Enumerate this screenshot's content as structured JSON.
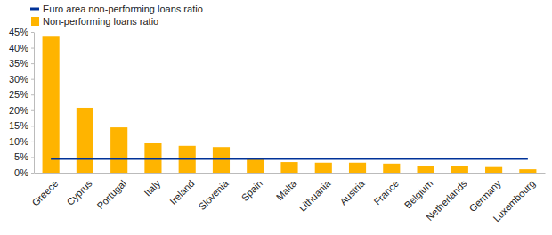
{
  "chart_data": {
    "type": "bar",
    "categories": [
      "Greece",
      "Cyprus",
      "Portugal",
      "Italy",
      "Ireland",
      "Slovenia",
      "Spain",
      "Malta",
      "Lithuania",
      "Austria",
      "France",
      "Belgium",
      "Netherlands",
      "Germany",
      "Luxembourg"
    ],
    "series": [
      {
        "name": "Euro area non-performing loans ratio",
        "type": "line",
        "color": "#003299",
        "values": [
          4.4,
          4.4,
          4.4,
          4.4,
          4.4,
          4.4,
          4.4,
          4.4,
          4.4,
          4.4,
          4.4,
          4.4,
          4.4,
          4.4,
          4.4
        ]
      },
      {
        "name": "Non-performing loans ratio",
        "type": "bar",
        "color": "#FFB400",
        "values": [
          43.5,
          20.8,
          14.5,
          9.4,
          8.6,
          8.2,
          4.3,
          3.4,
          3.2,
          3.2,
          2.9,
          2.1,
          2.0,
          1.8,
          1.1
        ]
      }
    ],
    "ylim": [
      0,
      45
    ],
    "yticks": [
      {
        "value": 0,
        "label": "0%"
      },
      {
        "value": 5,
        "label": "5%"
      },
      {
        "value": 10,
        "label": "10%"
      },
      {
        "value": 15,
        "label": "15%"
      },
      {
        "value": 20,
        "label": "20%"
      },
      {
        "value": 25,
        "label": "25%"
      },
      {
        "value": 30,
        "label": "30%"
      },
      {
        "value": 35,
        "label": "35%"
      },
      {
        "value": 40,
        "label": "40%"
      },
      {
        "value": 45,
        "label": "45%"
      }
    ],
    "grid": false,
    "legend": "top-left"
  }
}
